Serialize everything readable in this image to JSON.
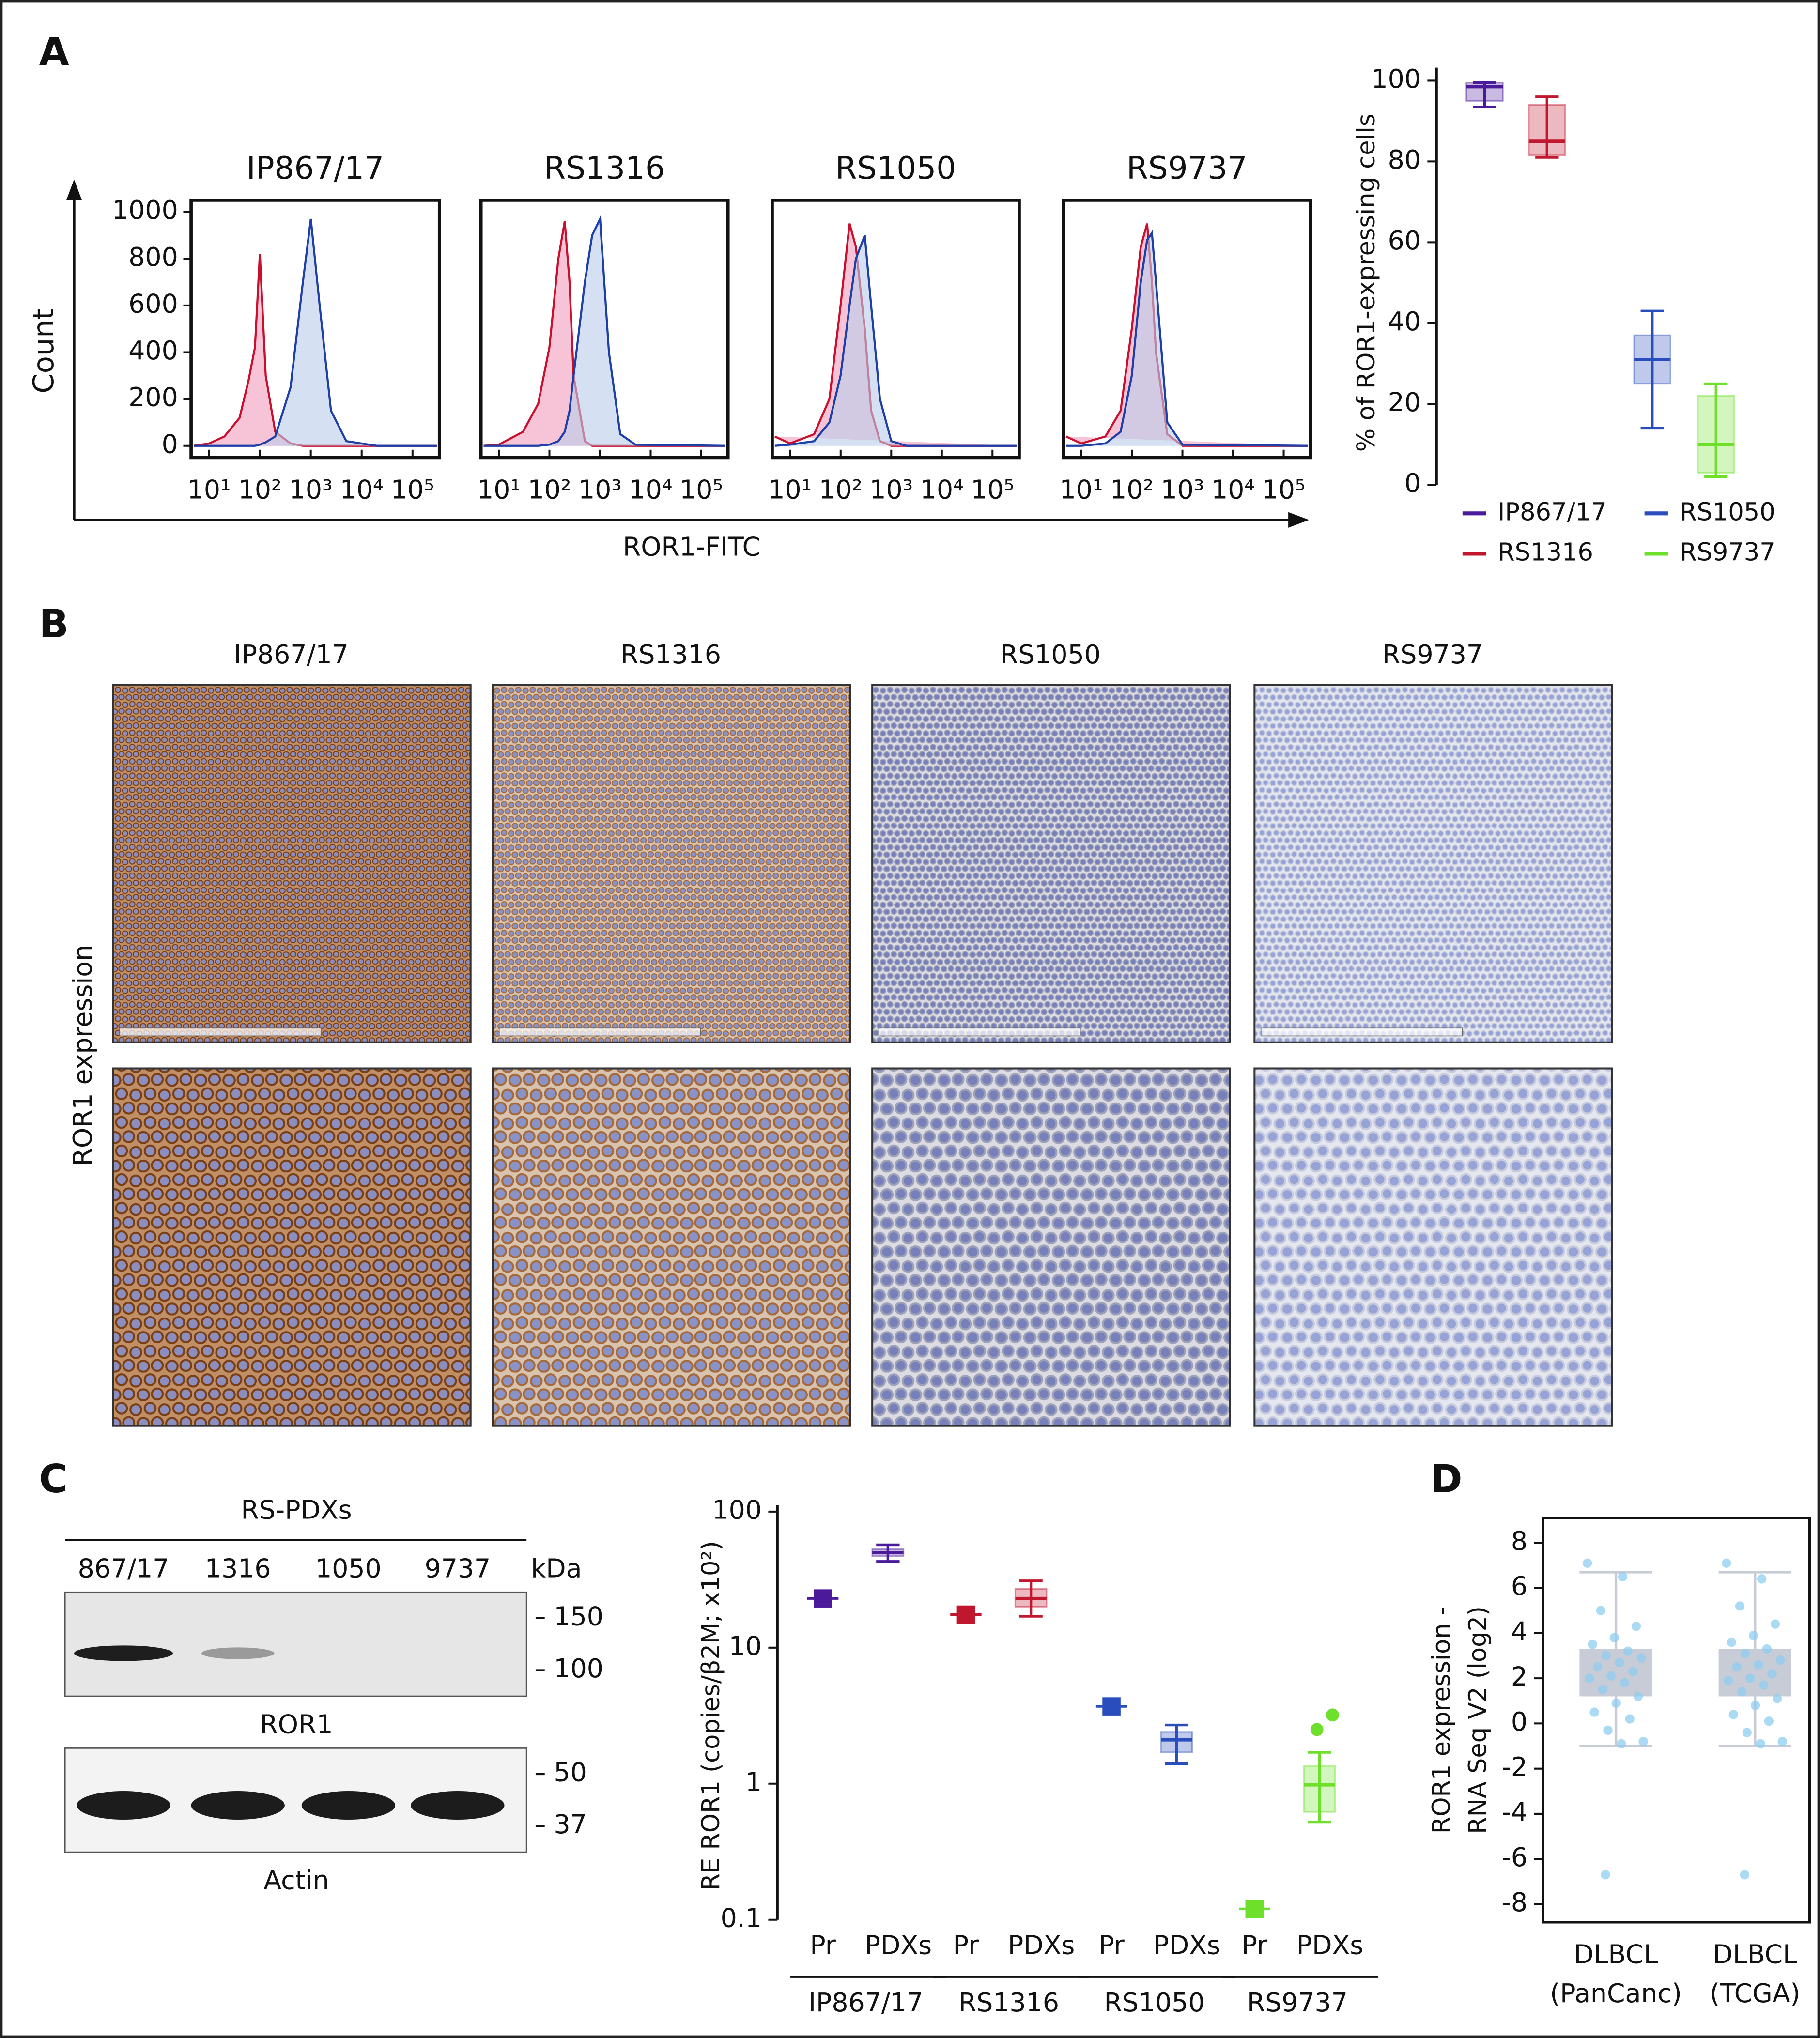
{
  "panel_labels": [
    "A",
    "B",
    "C",
    "D"
  ],
  "flow_axes": {
    "ylabel": "Count",
    "xlabel": "ROR1-FITC"
  },
  "chart_data": [
    {
      "type": "line",
      "title": "IP867/17",
      "xscale": "log",
      "xlim": [
        5,
        300000
      ],
      "ylim": [
        0,
        1050
      ],
      "xticks": [
        {
          "value": 10,
          "label": "10¹"
        },
        {
          "value": 100,
          "label": "10²"
        },
        {
          "value": 1000,
          "label": "10³"
        },
        {
          "value": 10000,
          "label": "10⁴"
        },
        {
          "value": 100000,
          "label": "10⁵"
        }
      ],
      "yticks": [
        0,
        200,
        400,
        600,
        800,
        1000
      ],
      "x": [
        5,
        10,
        20,
        40,
        60,
        80,
        100,
        130,
        200,
        400,
        700,
        1000,
        1500,
        2500,
        5000,
        20000,
        300000
      ],
      "series": [
        {
          "color": "#c8102e",
          "fill_color": "#f29bbb",
          "values": [
            0,
            10,
            40,
            120,
            280,
            420,
            820,
            300,
            60,
            10,
            0,
            0,
            0,
            0,
            0,
            0,
            0
          ]
        },
        {
          "color": "#1f3fa8",
          "fill_color": "#b9cdea",
          "values": [
            0,
            0,
            0,
            0,
            0,
            0,
            5,
            15,
            40,
            250,
            700,
            970,
            600,
            150,
            20,
            0,
            0
          ]
        }
      ]
    },
    {
      "type": "line",
      "title": "RS1316",
      "xscale": "log",
      "xlim": [
        5,
        300000
      ],
      "ylim": [
        0,
        1050
      ],
      "xticks": [
        {
          "value": 10,
          "label": "10¹"
        },
        {
          "value": 100,
          "label": "10²"
        },
        {
          "value": 1000,
          "label": "10³"
        },
        {
          "value": 10000,
          "label": "10⁴"
        },
        {
          "value": 100000,
          "label": "10⁵"
        }
      ],
      "x": [
        5,
        10,
        30,
        60,
        100,
        150,
        200,
        250,
        300,
        500,
        700,
        1000,
        1500,
        2500,
        5000,
        300000
      ],
      "series": [
        {
          "color": "#c8102e",
          "fill_color": "#f29bbb",
          "values": [
            0,
            5,
            60,
            180,
            420,
            800,
            960,
            700,
            300,
            20,
            0,
            0,
            0,
            0,
            0,
            0
          ]
        },
        {
          "color": "#1f3fa8",
          "fill_color": "#b9cdea",
          "values": [
            0,
            0,
            0,
            0,
            5,
            20,
            60,
            150,
            300,
            700,
            900,
            970,
            400,
            50,
            5,
            0
          ]
        }
      ]
    },
    {
      "type": "line",
      "title": "RS1050",
      "xscale": "log",
      "xlim": [
        5,
        300000
      ],
      "ylim": [
        0,
        1050
      ],
      "xticks": [
        {
          "value": 10,
          "label": "10¹"
        },
        {
          "value": 100,
          "label": "10²"
        },
        {
          "value": 1000,
          "label": "10³"
        },
        {
          "value": 10000,
          "label": "10⁴"
        },
        {
          "value": 100000,
          "label": "10⁵"
        }
      ],
      "x": [
        5,
        10,
        30,
        60,
        100,
        150,
        200,
        300,
        400,
        600,
        1000,
        2000,
        300000
      ],
      "series": [
        {
          "color": "#c8102e",
          "fill_color": "#f29bbb",
          "values": [
            40,
            10,
            50,
            200,
            600,
            950,
            850,
            500,
            150,
            20,
            0,
            0,
            0
          ]
        },
        {
          "color": "#1f3fa8",
          "fill_color": "#b9cdea",
          "values": [
            0,
            5,
            20,
            100,
            300,
            600,
            800,
            900,
            600,
            200,
            20,
            0,
            0
          ]
        }
      ]
    },
    {
      "type": "line",
      "title": "RS9737",
      "xscale": "log",
      "xlim": [
        5,
        300000
      ],
      "ylim": [
        0,
        1050
      ],
      "xticks": [
        {
          "value": 10,
          "label": "10¹"
        },
        {
          "value": 100,
          "label": "10²"
        },
        {
          "value": 1000,
          "label": "10³"
        },
        {
          "value": 10000,
          "label": "10⁴"
        },
        {
          "value": 100000,
          "label": "10⁵"
        }
      ],
      "x": [
        5,
        10,
        30,
        60,
        100,
        150,
        200,
        250,
        300,
        500,
        1000,
        300000
      ],
      "series": [
        {
          "color": "#c8102e",
          "fill_color": "#f29bbb",
          "values": [
            40,
            10,
            40,
            150,
            500,
            850,
            950,
            700,
            400,
            50,
            0,
            0
          ]
        },
        {
          "color": "#1f3fa8",
          "fill_color": "#b9cdea",
          "values": [
            0,
            0,
            10,
            60,
            300,
            700,
            880,
            910,
            700,
            100,
            5,
            0
          ]
        }
      ]
    },
    {
      "type": "box",
      "ylabel": "% of ROR1-expressing cells",
      "ylim": [
        0,
        100
      ],
      "yticks": [
        0,
        20,
        40,
        60,
        80,
        100
      ],
      "legend": "bottom",
      "series": [
        {
          "name": "IP867/17",
          "color": "#4b1a9a",
          "min": 93.5,
          "q1": 95,
          "median": 98.5,
          "q3": 99.5,
          "max": 99.5
        },
        {
          "name": "RS1316",
          "color": "#c0172e",
          "min": 81,
          "q1": 81.5,
          "median": 85,
          "q3": 94,
          "max": 96
        },
        {
          "name": "RS1050",
          "color": "#2a4dbd",
          "min": 14,
          "q1": 25,
          "median": 31,
          "q3": 37,
          "max": 43
        },
        {
          "name": "RS9737",
          "color": "#6ee02b",
          "min": 2,
          "q1": 3,
          "median": 10,
          "q3": 22,
          "max": 25
        }
      ]
    },
    {
      "type": "box",
      "ylabel": "RE ROR1 (copies/β2M; x10²)",
      "yscale": "log",
      "ylim": [
        0.1,
        100
      ],
      "yticks": [
        0.1,
        1,
        10,
        100
      ],
      "sublabels": [
        "Pr",
        "PDXs"
      ],
      "series": [
        {
          "name": "IP867/17",
          "color": "#4b1a9a",
          "primary": 23,
          "min": 43,
          "q1": 47,
          "median": 50,
          "q3": 53,
          "max": 57
        },
        {
          "name": "RS1316",
          "color": "#c0172e",
          "primary": 17.5,
          "min": 17,
          "q1": 20,
          "median": 23,
          "q3": 27,
          "max": 31
        },
        {
          "name": "RS1050",
          "color": "#2a4dbd",
          "primary": 3.7,
          "min": 1.4,
          "q1": 1.7,
          "median": 2.1,
          "q3": 2.4,
          "max": 2.7
        },
        {
          "name": "RS9737",
          "color": "#6ee02b",
          "primary": 0.12,
          "min": 0.52,
          "q1": 0.62,
          "median": 0.98,
          "q3": 1.35,
          "max": 1.7,
          "outliers": [
            2.5,
            3.2
          ]
        }
      ]
    },
    {
      "type": "box",
      "ylabel": [
        "ROR1 expression -",
        "RNA Seq V2 (log2)"
      ],
      "ylim": [
        -8.8,
        9.1
      ],
      "yticks": [
        -8,
        -6,
        -4,
        -2,
        0,
        2,
        4,
        6,
        8
      ],
      "box_color": "#c8ccd6",
      "series": [
        {
          "name": [
            "DLBCL",
            "(PanCanc)"
          ],
          "color": "#8fcdf0",
          "min": -1,
          "q1": 1.2,
          "q3": 3.3,
          "max": 6.7,
          "points": [
            7.1,
            6.5,
            5.0,
            4.3,
            3.8,
            3.5,
            3.2,
            3.0,
            2.9,
            2.7,
            2.5,
            2.3,
            2.1,
            2.0,
            1.8,
            1.5,
            1.2,
            0.9,
            0.5,
            0.2,
            -0.3,
            -0.8,
            -0.9,
            -6.7
          ]
        },
        {
          "name": [
            "DLBCL",
            "(TCGA)"
          ],
          "color": "#8fcdf0",
          "min": -1,
          "q1": 1.2,
          "q3": 3.3,
          "max": 6.7,
          "points": [
            7.1,
            6.4,
            5.2,
            4.4,
            3.9,
            3.6,
            3.3,
            3.1,
            2.8,
            2.6,
            2.5,
            2.2,
            2.0,
            1.9,
            1.7,
            1.4,
            1.1,
            0.8,
            0.4,
            0.1,
            -0.4,
            -0.8,
            -0.9,
            -6.7
          ]
        }
      ]
    }
  ],
  "ihc": {
    "columns": [
      "IP867/17",
      "RS1316",
      "RS1050",
      "RS9737"
    ],
    "row_label": "ROR1 expression"
  },
  "western": {
    "group": "RS-PDXs",
    "lanes": [
      "867/17",
      "1316",
      "1050",
      "9737"
    ],
    "unit": "kDa",
    "blots": [
      {
        "name": "ROR1",
        "markers": [
          150,
          100
        ]
      },
      {
        "name": "Actin",
        "markers": [
          50,
          37
        ]
      }
    ]
  }
}
